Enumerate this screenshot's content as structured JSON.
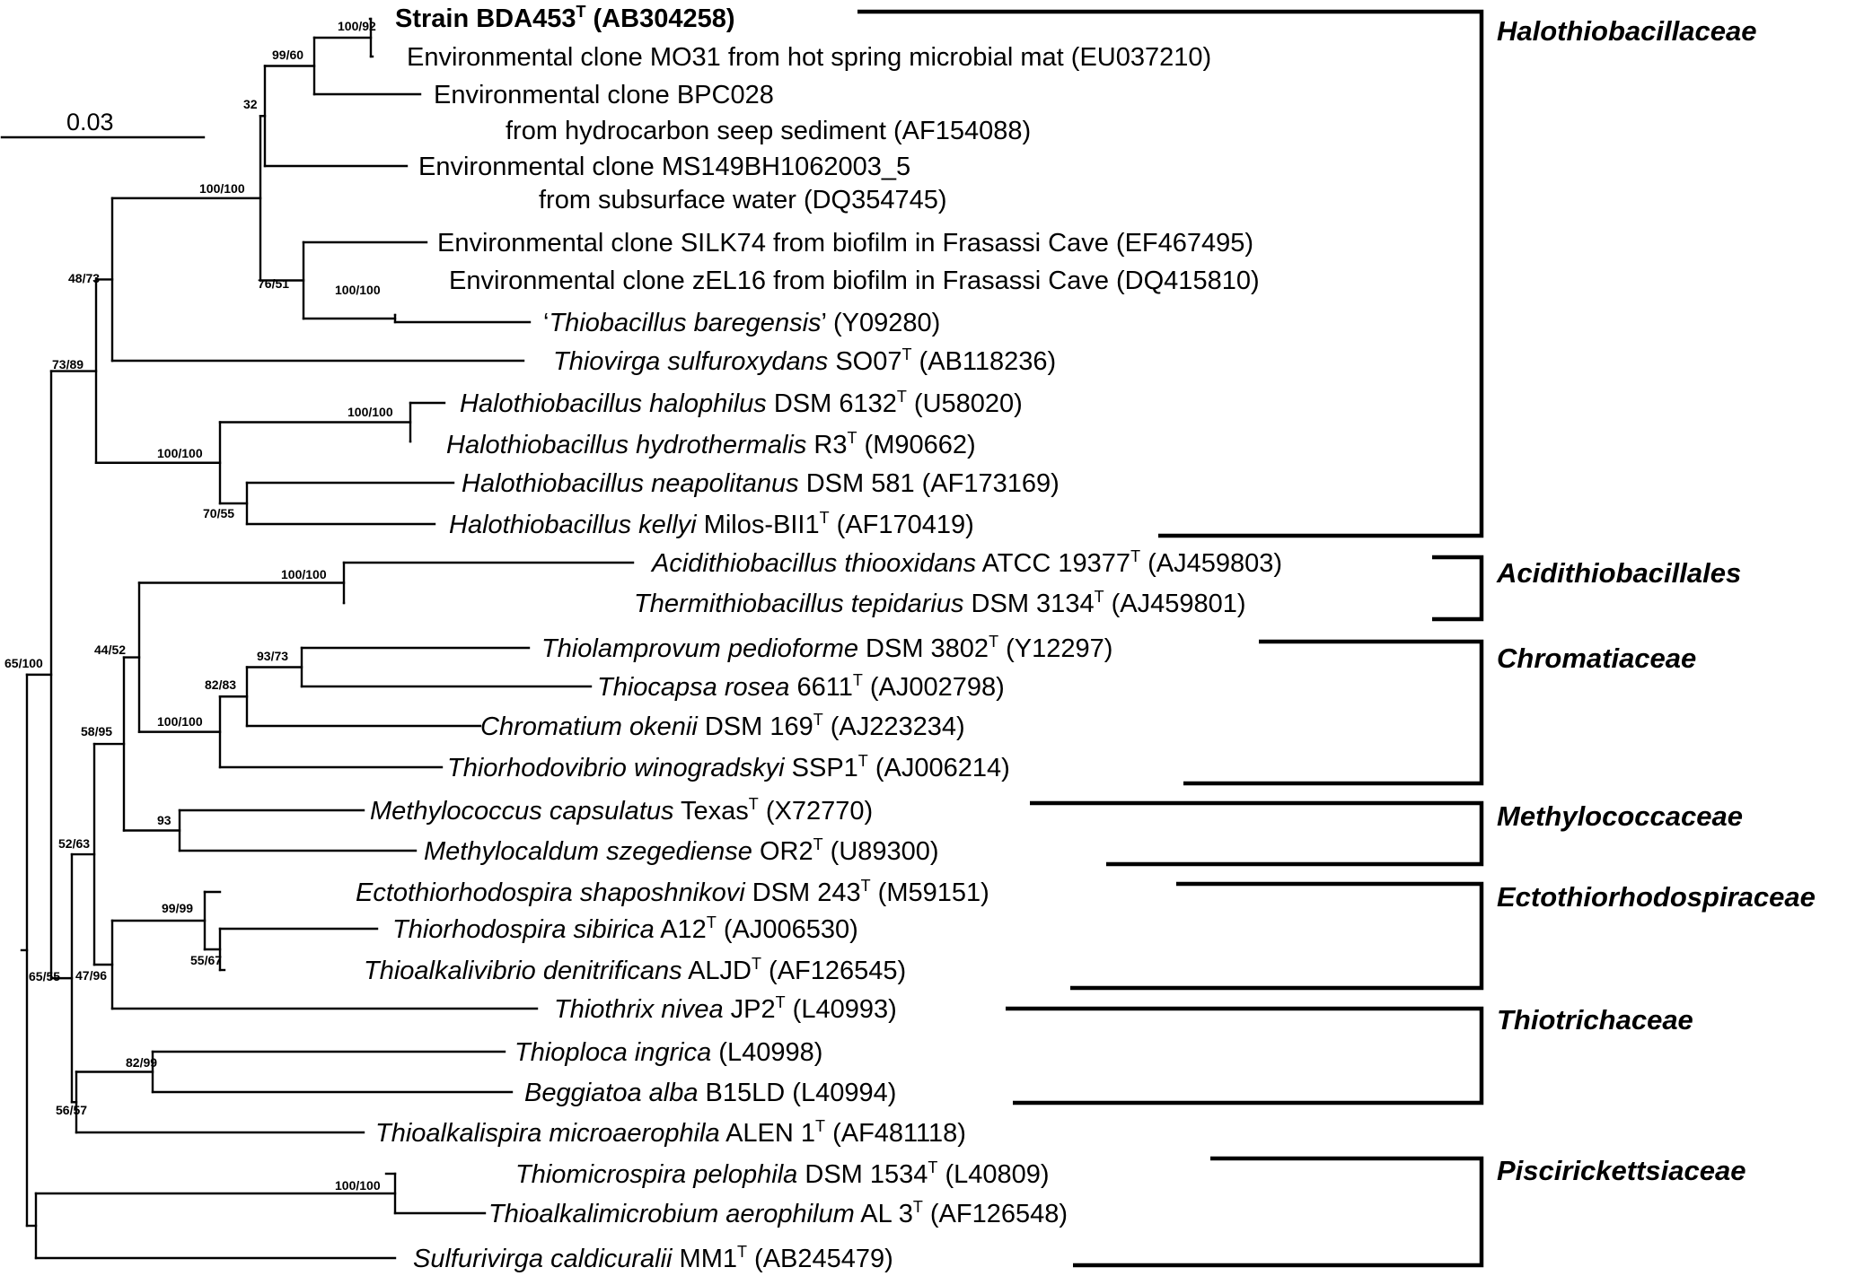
{
  "tree": {
    "scale_bar": {
      "label": "0.03"
    },
    "leaves": [
      {
        "id": "strain_bda453",
        "emphasis": true,
        "parts": [
          {
            "t": "Strain BDA453"
          },
          {
            "t": "T",
            "sup": true
          },
          {
            "t": " (AB304258)"
          }
        ]
      },
      {
        "id": "mo31",
        "parts": [
          {
            "t": "Environmental clone MO31 from hot spring microbial mat (EU037210)"
          }
        ]
      },
      {
        "id": "bpc028",
        "parts": [
          {
            "t": "Environmental clone BPC028"
          }
        ],
        "line2": [
          {
            "t": "from hydrocarbon seep sediment (AF154088)"
          }
        ]
      },
      {
        "id": "ms149",
        "parts": [
          {
            "t": "Environmental clone MS149BH1062003_5"
          }
        ],
        "line2": [
          {
            "t": "from subsurface water (DQ354745)"
          }
        ]
      },
      {
        "id": "silk74",
        "parts": [
          {
            "t": "Environmental clone SILK74 from biofilm in Frasassi Cave (EF467495)"
          }
        ]
      },
      {
        "id": "zel16",
        "parts": [
          {
            "t": "Environmental clone zEL16 from biofilm in Frasassi Cave (DQ415810)"
          }
        ]
      },
      {
        "id": "baregensis",
        "parts": [
          {
            "t": "‘"
          },
          {
            "t": "Thiobacillus baregensis",
            "i": true
          },
          {
            "t": "’ (Y09280)"
          }
        ]
      },
      {
        "id": "thiovirga",
        "parts": [
          {
            "t": "Thiovirga sulfuroxydans",
            "i": true
          },
          {
            "t": " SO07"
          },
          {
            "t": "T",
            "sup": true
          },
          {
            "t": " (AB118236)"
          }
        ]
      },
      {
        "id": "h_halophilus",
        "parts": [
          {
            "t": "Halothiobacillus halophilus",
            "i": true
          },
          {
            "t": " DSM 6132"
          },
          {
            "t": "T",
            "sup": true
          },
          {
            "t": "  (U58020)"
          }
        ]
      },
      {
        "id": "h_hydrothermalis",
        "parts": [
          {
            "t": "Halothiobacillus hydrothermalis",
            "i": true
          },
          {
            "t": " R3"
          },
          {
            "t": "T",
            "sup": true
          },
          {
            "t": "  (M90662)"
          }
        ]
      },
      {
        "id": "h_neapolitanus",
        "parts": [
          {
            "t": "Halothiobacillus neapolitanus",
            "i": true
          },
          {
            "t": " DSM 581  (AF173169)"
          }
        ]
      },
      {
        "id": "h_kellyi",
        "parts": [
          {
            "t": "Halothiobacillus kellyi",
            "i": true
          },
          {
            "t": " Milos-BII1"
          },
          {
            "t": "T",
            "sup": true
          },
          {
            "t": "  (AF170419)"
          }
        ]
      },
      {
        "id": "a_thiooxidans",
        "parts": [
          {
            "t": "Acidithiobacillus thiooxidans",
            "i": true
          },
          {
            "t": " ATCC 19377"
          },
          {
            "t": "T",
            "sup": true
          },
          {
            "t": " (AJ459803)"
          }
        ]
      },
      {
        "id": "t_tepidarius",
        "parts": [
          {
            "t": "Thermithiobacillus tepidarius",
            "i": true
          },
          {
            "t": " DSM 3134"
          },
          {
            "t": "T",
            "sup": true
          },
          {
            "t": " (AJ459801)"
          }
        ]
      },
      {
        "id": "t_pedioforme",
        "parts": [
          {
            "t": "Thiolamprovum pedioforme",
            "i": true
          },
          {
            "t": " DSM 3802"
          },
          {
            "t": "T",
            "sup": true
          },
          {
            "t": " (Y12297)"
          }
        ]
      },
      {
        "id": "t_rosea",
        "parts": [
          {
            "t": "Thiocapsa rosea",
            "i": true
          },
          {
            "t": " 6611"
          },
          {
            "t": "T",
            "sup": true
          },
          {
            "t": " (AJ002798)"
          }
        ]
      },
      {
        "id": "c_okenii",
        "parts": [
          {
            "t": "Chromatium okenii",
            "i": true
          },
          {
            "t": " DSM 169"
          },
          {
            "t": "T",
            "sup": true
          },
          {
            "t": " (AJ223234)"
          }
        ]
      },
      {
        "id": "t_winogradskyi",
        "parts": [
          {
            "t": "Thiorhodovibrio winogradskyi",
            "i": true
          },
          {
            "t": " SSP1"
          },
          {
            "t": "T",
            "sup": true
          },
          {
            "t": " (AJ006214)"
          }
        ]
      },
      {
        "id": "m_capsulatus",
        "parts": [
          {
            "t": "Methylococcus capsulatus",
            "i": true
          },
          {
            "t": " Texas"
          },
          {
            "t": "T",
            "sup": true
          },
          {
            "t": " (X72770)"
          }
        ]
      },
      {
        "id": "m_szegediense",
        "parts": [
          {
            "t": "Methylocaldum szegediense",
            "i": true
          },
          {
            "t": " OR2"
          },
          {
            "t": "T",
            "sup": true
          },
          {
            "t": " (U89300)"
          }
        ]
      },
      {
        "id": "e_shaposhnikovi",
        "parts": [
          {
            "t": "Ectothiorhodospira shaposhnikovi",
            "i": true
          },
          {
            "t": " DSM 243"
          },
          {
            "t": "T",
            "sup": true
          },
          {
            "t": " (M59151)"
          }
        ]
      },
      {
        "id": "t_sibirica",
        "parts": [
          {
            "t": "Thiorhodospira sibirica",
            "i": true
          },
          {
            "t": " A12"
          },
          {
            "t": "T",
            "sup": true
          },
          {
            "t": "  (AJ006530)"
          }
        ]
      },
      {
        "id": "t_denitrificans",
        "parts": [
          {
            "t": "Thioalkalivibrio denitrificans",
            "i": true
          },
          {
            "t": " ALJD"
          },
          {
            "t": "T",
            "sup": true
          },
          {
            "t": " (AF126545)"
          }
        ]
      },
      {
        "id": "t_nivea",
        "parts": [
          {
            "t": "Thiothrix nivea",
            "i": true
          },
          {
            "t": " JP2"
          },
          {
            "t": "T",
            "sup": true
          },
          {
            "t": " (L40993)"
          }
        ]
      },
      {
        "id": "t_ingrica",
        "parts": [
          {
            "t": "Thioploca ingrica",
            "i": true
          },
          {
            "t": " (L40998)"
          }
        ]
      },
      {
        "id": "b_alba",
        "parts": [
          {
            "t": "Beggiatoa alba",
            "i": true
          },
          {
            "t": " B15LD  (L40994)"
          }
        ]
      },
      {
        "id": "t_microaerophila",
        "parts": [
          {
            "t": "Thioalkalispira microaerophila",
            "i": true
          },
          {
            "t": " ALEN 1"
          },
          {
            "t": "T",
            "sup": true
          },
          {
            "t": " (AF481118)"
          }
        ]
      },
      {
        "id": "t_pelophila",
        "parts": [
          {
            "t": "Thiomicrospira pelophila",
            "i": true
          },
          {
            "t": " DSM 1534"
          },
          {
            "t": "T",
            "sup": true
          },
          {
            "t": " (L40809)"
          }
        ]
      },
      {
        "id": "t_aerophilum",
        "parts": [
          {
            "t": "Thioalkalimicrobium aerophilum",
            "i": true
          },
          {
            "t": " AL 3"
          },
          {
            "t": "T",
            "sup": true
          },
          {
            "t": " (AF126548)"
          }
        ]
      },
      {
        "id": "s_caldicuralii",
        "parts": [
          {
            "t": "Sulfurivirga caldicuralii",
            "i": true
          },
          {
            "t": " MM1"
          },
          {
            "t": "T",
            "sup": true
          },
          {
            "t": " (AB245479)"
          }
        ]
      }
    ],
    "support_values": [
      {
        "id": "n_strain",
        "text": "100/92"
      },
      {
        "id": "n_a",
        "text": "99/60"
      },
      {
        "id": "n_b",
        "text": "32"
      },
      {
        "id": "n_c",
        "text": "100/100"
      },
      {
        "id": "n_zel",
        "text": "100/100"
      },
      {
        "id": "n_d",
        "text": "76/51"
      },
      {
        "id": "n_e",
        "text": "48/73"
      },
      {
        "id": "n_f",
        "text": "73/89"
      },
      {
        "id": "n_hal2",
        "text": "100/100"
      },
      {
        "id": "n_hal",
        "text": "100/100"
      },
      {
        "id": "n_hal3",
        "text": "70/55"
      },
      {
        "id": "n_acid",
        "text": "100/100"
      },
      {
        "id": "n_g",
        "text": "44/52"
      },
      {
        "id": "n_ped",
        "text": "93/73"
      },
      {
        "id": "n_h",
        "text": "82/83"
      },
      {
        "id": "n_chrom",
        "text": "100/100"
      },
      {
        "id": "n_i",
        "text": "58/95"
      },
      {
        "id": "n_meth",
        "text": "93"
      },
      {
        "id": "n_j",
        "text": "52/63"
      },
      {
        "id": "n_ecto",
        "text": "99/99"
      },
      {
        "id": "n_k",
        "text": "55/67"
      },
      {
        "id": "n_l",
        "text": "47/96"
      },
      {
        "id": "n_thiop",
        "text": "82/99"
      },
      {
        "id": "n_m",
        "text": "56/57"
      },
      {
        "id": "n_n",
        "text": "65/55"
      },
      {
        "id": "n_o",
        "text": "65/100"
      },
      {
        "id": "n_pisc",
        "text": "100/100"
      }
    ],
    "families": [
      {
        "id": "halothiobacillaceae",
        "label": "Halothiobacillaceae"
      },
      {
        "id": "acidithiobacillales",
        "label": "Acidithiobacillales"
      },
      {
        "id": "chromatiaceae",
        "label": "Chromatiaceae"
      },
      {
        "id": "methylococcaceae",
        "label": "Methylococcaceae"
      },
      {
        "id": "ectothiorhodospiraceae",
        "label": "Ectothiorhodospiraceae"
      },
      {
        "id": "thiotrichaceae",
        "label": "Thiotrichaceae"
      },
      {
        "id": "piscirickettsiaceae",
        "label": "Piscirickettsiaceae"
      }
    ]
  }
}
